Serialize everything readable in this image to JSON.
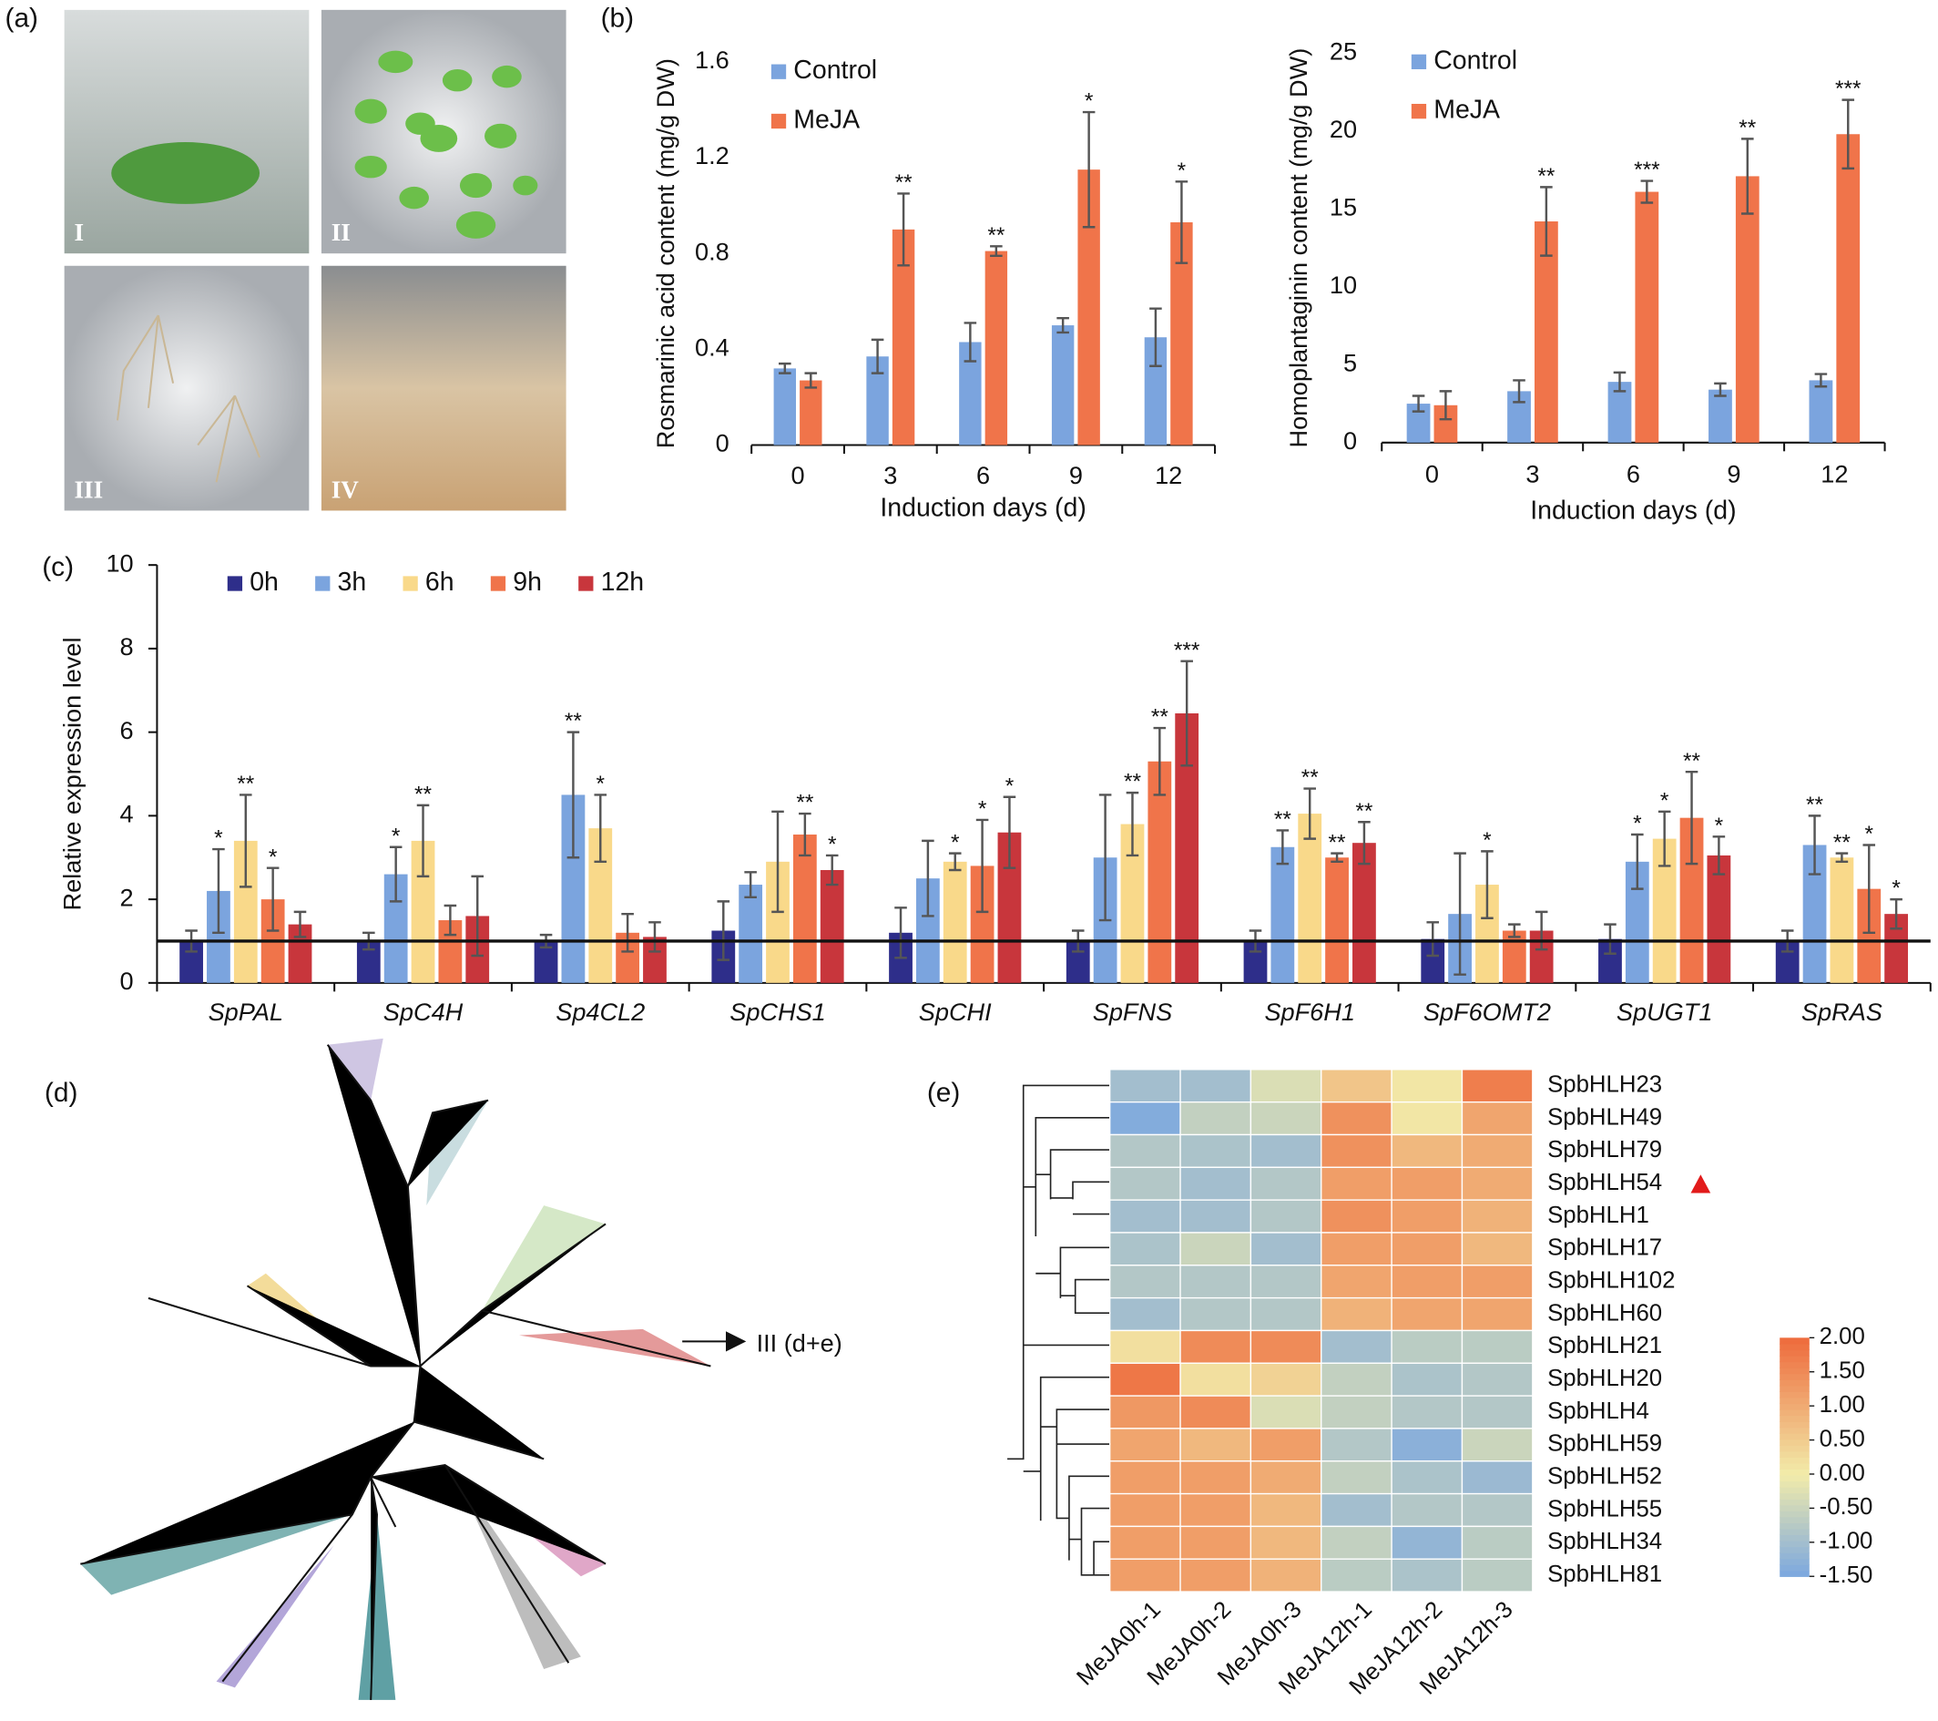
{
  "panel_labels": [
    "(a)",
    "(b)",
    "(c)",
    "(d)",
    "(e)"
  ],
  "photos": {
    "labels": [
      "I",
      "II",
      "III",
      "IV"
    ]
  },
  "tree": {
    "annotation": "III (d+e)"
  },
  "chart_data": [
    {
      "type": "bar",
      "y_label": "Rosmarinic acid content (mg/g DW)",
      "x_label": "Induction days (d)",
      "categories": [
        "0",
        "3",
        "6",
        "9",
        "12"
      ],
      "ylim": [
        0,
        1.6
      ],
      "yticks": [
        0,
        0.4,
        0.8,
        1.2,
        1.6
      ],
      "legend": "top-left",
      "series": [
        {
          "name": "Control",
          "color": "#7ba4de",
          "values": [
            0.32,
            0.37,
            0.43,
            0.5,
            0.45
          ],
          "errors": [
            0.02,
            0.07,
            0.08,
            0.03,
            0.12
          ],
          "significance": [
            null,
            null,
            null,
            null,
            null
          ]
        },
        {
          "name": "MeJA",
          "color": "#f0744a",
          "values": [
            0.27,
            0.9,
            0.81,
            1.15,
            0.93
          ],
          "errors": [
            0.03,
            0.15,
            0.02,
            0.24,
            0.17
          ],
          "significance": [
            null,
            "**",
            "**",
            "*",
            "*"
          ]
        }
      ]
    },
    {
      "type": "bar",
      "y_label": "Homoplantaginin content (mg/g DW)",
      "x_label": "Induction days (d)",
      "categories": [
        "0",
        "3",
        "6",
        "9",
        "12"
      ],
      "ylim": [
        0,
        25
      ],
      "yticks": [
        0,
        5,
        10,
        15,
        20,
        25
      ],
      "legend": "top-left",
      "series": [
        {
          "name": "Control",
          "color": "#7ba4de",
          "values": [
            2.5,
            3.3,
            3.9,
            3.4,
            4.0
          ],
          "errors": [
            0.5,
            0.7,
            0.6,
            0.4,
            0.4
          ],
          "significance": [
            null,
            null,
            null,
            null,
            null
          ]
        },
        {
          "name": "MeJA",
          "color": "#f0744a",
          "values": [
            2.4,
            14.2,
            16.1,
            17.1,
            19.8
          ],
          "errors": [
            0.9,
            2.2,
            0.7,
            2.4,
            2.2
          ],
          "significance": [
            null,
            "**",
            "***",
            "**",
            "***"
          ]
        }
      ]
    },
    {
      "type": "bar",
      "y_label": "Relative expression level",
      "reference_line": 1,
      "categories": [
        "SpPAL",
        "SpC4H",
        "Sp4CL2",
        "SpCHS1",
        "SpCHI",
        "SpFNS",
        "SpF6H1",
        "SpF6OMT2",
        "SpUGT1",
        "SpRAS"
      ],
      "ylim": [
        0,
        10
      ],
      "yticks": [
        0,
        2,
        4,
        6,
        8,
        10
      ],
      "legend": "top-left",
      "series": [
        {
          "name": "0h",
          "color": "#2e2e8a",
          "values": [
            1.0,
            1.0,
            1.0,
            1.25,
            1.2,
            1.0,
            1.0,
            1.05,
            1.05,
            1.0
          ],
          "errors": [
            0.25,
            0.2,
            0.15,
            0.7,
            0.6,
            0.25,
            0.25,
            0.4,
            0.35,
            0.25
          ],
          "significance": [
            null,
            null,
            null,
            null,
            null,
            null,
            null,
            null,
            null,
            null
          ]
        },
        {
          "name": "3h",
          "color": "#7ba4de",
          "values": [
            2.2,
            2.6,
            4.5,
            2.35,
            2.5,
            3.0,
            3.25,
            1.65,
            2.9,
            3.3
          ],
          "errors": [
            1.0,
            0.65,
            1.5,
            0.3,
            0.9,
            1.5,
            0.4,
            1.45,
            0.65,
            0.7
          ],
          "significance": [
            "*",
            "*",
            "**",
            null,
            null,
            null,
            "**",
            null,
            "*",
            "**"
          ]
        },
        {
          "name": "6h",
          "color": "#f9d98a",
          "values": [
            3.4,
            3.4,
            3.7,
            2.9,
            2.9,
            3.8,
            4.05,
            2.35,
            3.45,
            3.0
          ],
          "errors": [
            1.1,
            0.85,
            0.8,
            1.2,
            0.2,
            0.75,
            0.6,
            0.8,
            0.65,
            0.1
          ],
          "significance": [
            "**",
            "**",
            "*",
            null,
            "*",
            "**",
            "**",
            "*",
            "*",
            "**"
          ]
        },
        {
          "name": "9h",
          "color": "#f0744a",
          "values": [
            2.0,
            1.5,
            1.2,
            3.55,
            2.8,
            5.3,
            3.0,
            1.25,
            3.95,
            2.25
          ],
          "errors": [
            0.75,
            0.35,
            0.45,
            0.5,
            1.1,
            0.8,
            0.1,
            0.15,
            1.1,
            1.05
          ],
          "significance": [
            "*",
            null,
            null,
            "**",
            "*",
            "**",
            "**",
            null,
            "**",
            "*"
          ]
        },
        {
          "name": "12h",
          "color": "#c8363c",
          "values": [
            1.4,
            1.6,
            1.1,
            2.7,
            3.6,
            6.45,
            3.35,
            1.25,
            3.05,
            1.65
          ],
          "errors": [
            0.3,
            0.95,
            0.35,
            0.35,
            0.85,
            1.25,
            0.5,
            0.45,
            0.45,
            0.35
          ],
          "significance": [
            null,
            null,
            null,
            "*",
            "*",
            "***",
            "**",
            null,
            "*",
            "*"
          ]
        }
      ]
    },
    {
      "type": "heatmap",
      "rows": [
        "SpbHLH23",
        "SpbHLH49",
        "SpbHLH79",
        "SpbHLH54",
        "SpbHLH1",
        "SpbHLH17",
        "SpbHLH102",
        "SpbHLH60",
        "SpbHLH21",
        "SpbHLH20",
        "SpbHLH4",
        "SpbHLH59",
        "SpbHLH52",
        "SpbHLH55",
        "SpbHLH34",
        "SpbHLH81"
      ],
      "columns": [
        "MeJA0h-1",
        "MeJA0h-2",
        "MeJA0h-3",
        "MeJA12h-1",
        "MeJA12h-2",
        "MeJA12h-3"
      ],
      "values": [
        [
          -1.0,
          -1.0,
          -0.3,
          0.6,
          0.1,
          1.7
        ],
        [
          -1.4,
          -0.6,
          -0.5,
          1.4,
          0.1,
          1.1
        ],
        [
          -0.8,
          -0.9,
          -1.0,
          1.4,
          0.8,
          1.0
        ],
        [
          -0.8,
          -1.0,
          -0.8,
          1.2,
          1.2,
          1.0
        ],
        [
          -1.0,
          -1.0,
          -0.8,
          1.4,
          1.2,
          0.9
        ],
        [
          -0.9,
          -0.5,
          -1.0,
          1.2,
          1.2,
          0.8
        ],
        [
          -0.8,
          -0.8,
          -0.8,
          1.1,
          1.2,
          1.2
        ],
        [
          -1.0,
          -0.8,
          -0.8,
          0.9,
          1.1,
          1.1
        ],
        [
          0.2,
          1.5,
          1.5,
          -1.0,
          -0.7,
          -0.7
        ],
        [
          1.8,
          0.2,
          0.4,
          -0.6,
          -0.9,
          -0.8
        ],
        [
          1.3,
          1.5,
          -0.3,
          -0.6,
          -0.8,
          -0.8
        ],
        [
          1.1,
          0.8,
          1.2,
          -0.8,
          -1.3,
          -0.5
        ],
        [
          1.2,
          1.2,
          1.0,
          -0.6,
          -0.9,
          -1.1
        ],
        [
          1.2,
          1.2,
          0.8,
          -1.0,
          -0.8,
          -0.8
        ],
        [
          1.2,
          1.2,
          0.8,
          -0.6,
          -1.2,
          -0.7
        ],
        [
          1.2,
          1.2,
          0.9,
          -0.7,
          -0.9,
          -0.7
        ]
      ],
      "clim": [
        -1.5,
        2
      ],
      "colors": {
        "low": "#7ba7e0",
        "mid": "#f2ecaa",
        "high": "#ee6a3c"
      },
      "colorbar_ticks": [
        {
          "value": 2,
          "label": "2.00"
        },
        {
          "value": 1.5,
          "label": "1.50"
        },
        {
          "value": 1,
          "label": "1.00"
        },
        {
          "value": 0.5,
          "label": "0.50"
        },
        {
          "value": 0,
          "label": "0.00"
        },
        {
          "value": -0.5,
          "label": "-0.50"
        },
        {
          "value": -1,
          "label": "-1.00"
        },
        {
          "value": -1.5,
          "label": "-1.50"
        }
      ]
    }
  ]
}
